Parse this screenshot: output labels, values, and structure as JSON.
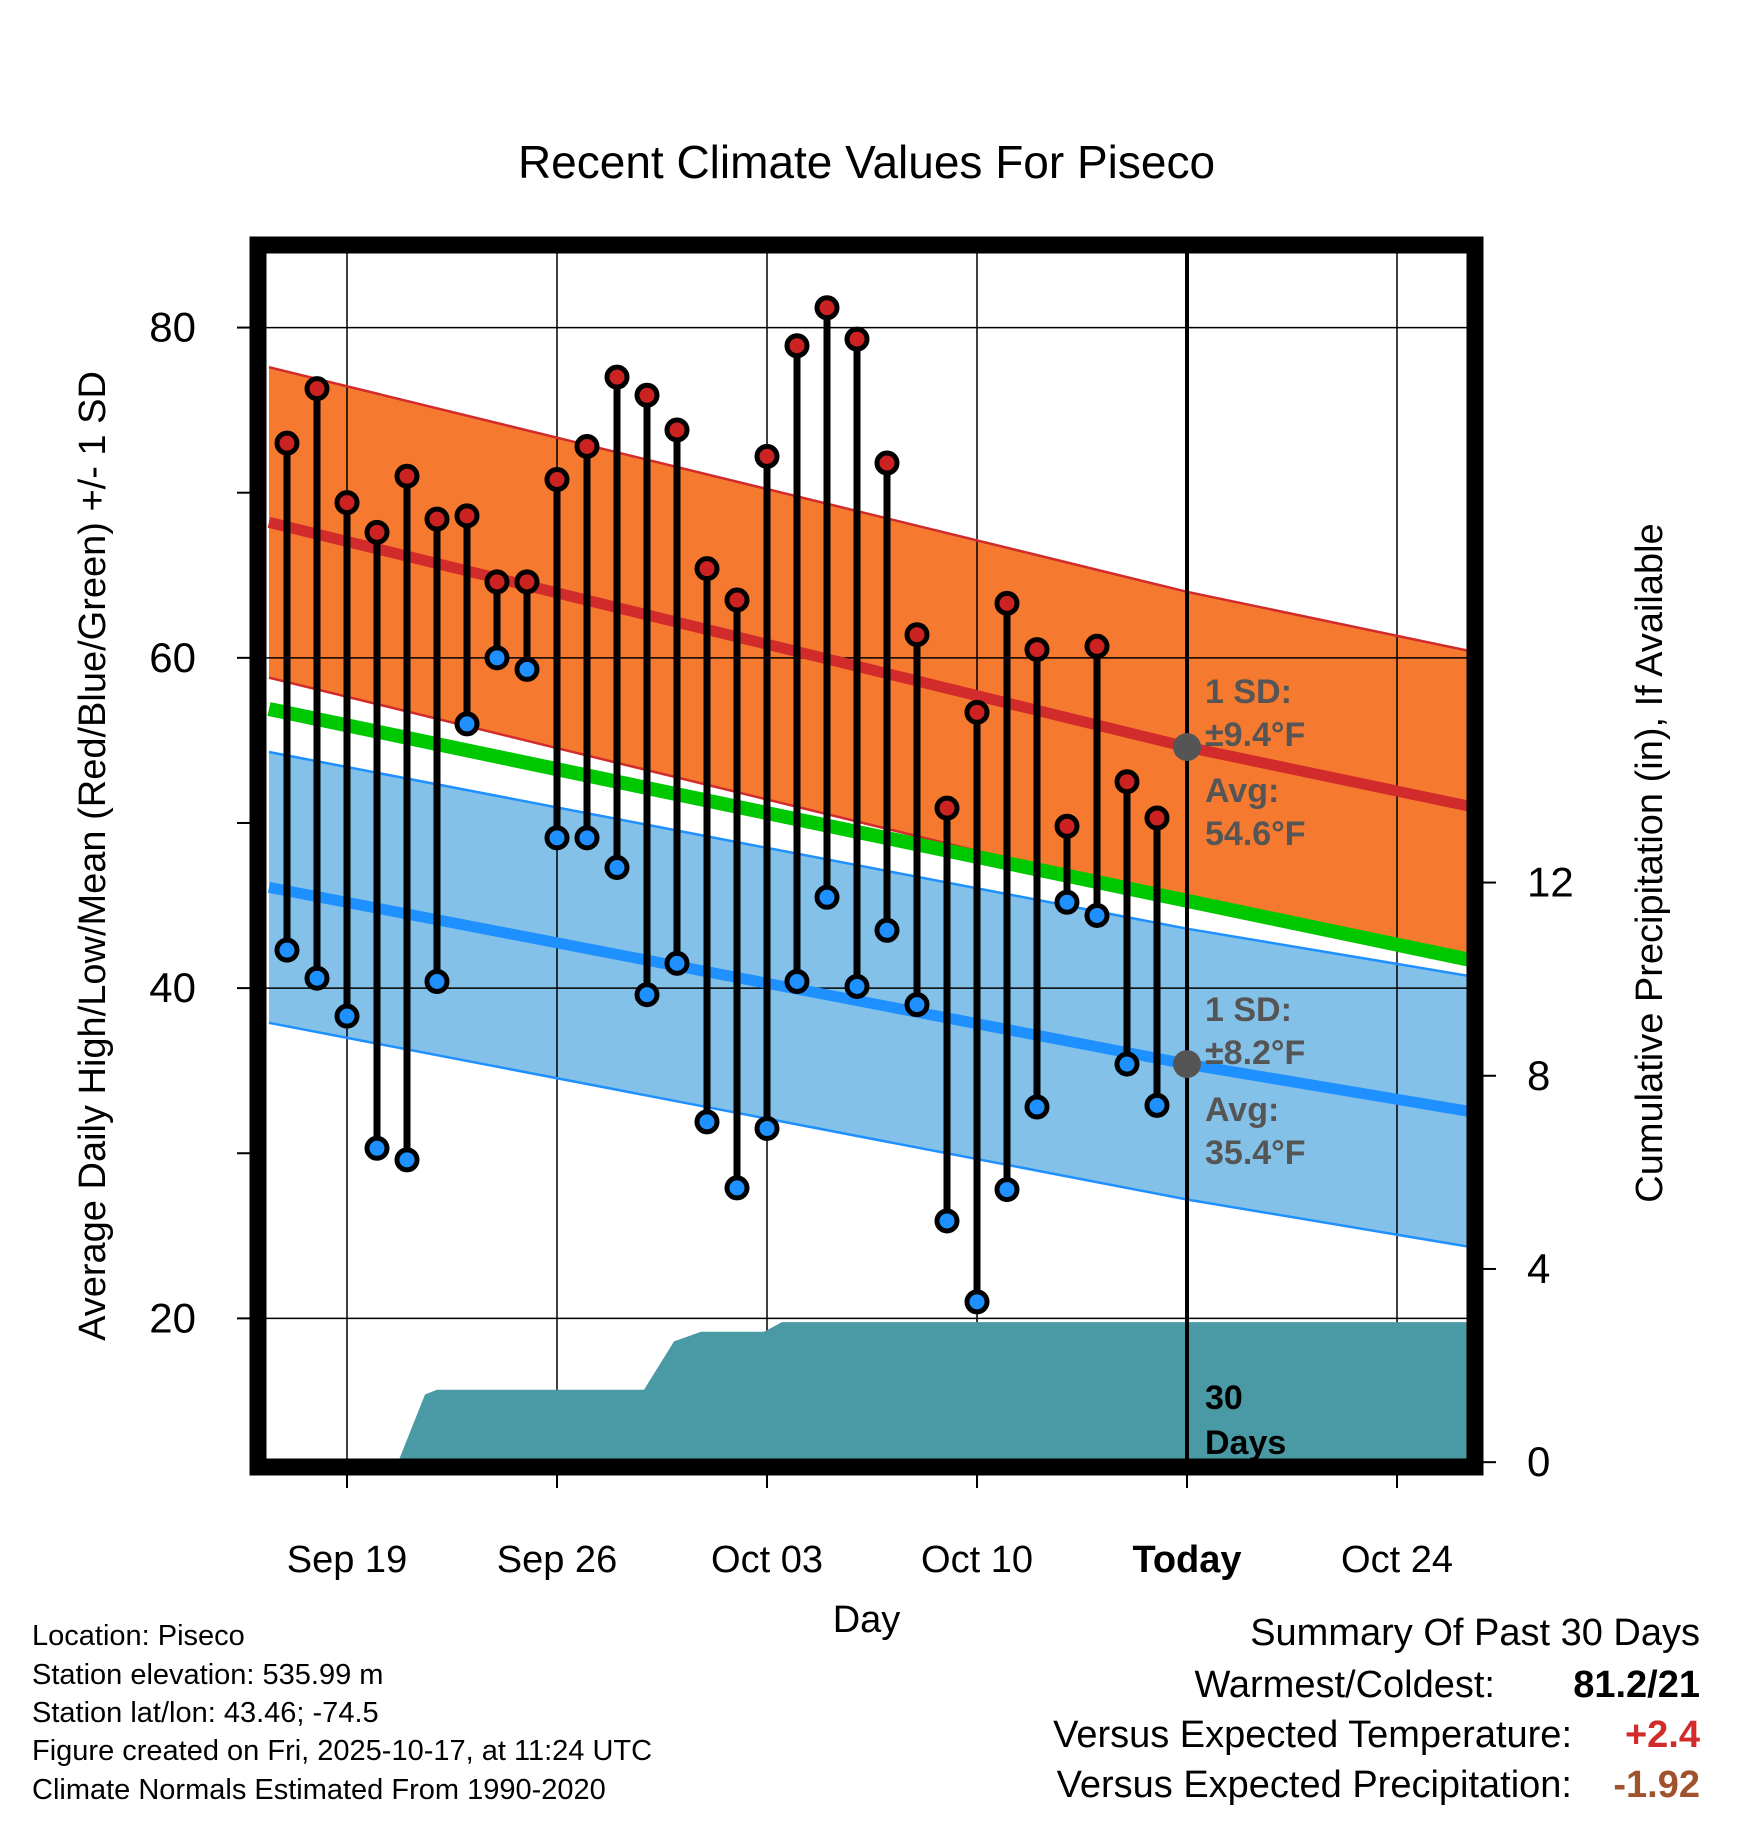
{
  "chart_data": {
    "type": "line",
    "title": "Recent Climate Values For Piseco",
    "xlabel": "Day",
    "ylabel": "Average Daily High/Low/Mean (Red/Blue/Green) +/- 1 SD",
    "y2label": "Cumulative Precipitation (in), If Available",
    "ylim": [
      11,
      85
    ],
    "y2lim": [
      -0.1,
      25.2
    ],
    "xlim": [
      -3.8,
      38.5
    ],
    "yticks": [
      "20",
      "40",
      "60",
      "80"
    ],
    "y2ticks": [
      "0",
      "4",
      "8",
      "12"
    ],
    "xticks": [
      {
        "day": 0,
        "label": "Sep 19"
      },
      {
        "day": 7,
        "label": "Sep 26"
      },
      {
        "day": 14,
        "label": "Oct 03"
      },
      {
        "day": 21,
        "label": "Oct 10"
      },
      {
        "day": 28,
        "label": "Today"
      },
      {
        "day": 35,
        "label": "Oct 24"
      }
    ],
    "today_day": 28,
    "normals": {
      "high_mean": [
        [
          -2.6,
          68.2
        ],
        [
          28,
          54.6
        ],
        [
          38.5,
          50.6
        ]
      ],
      "high_sd": 9.4,
      "low_mean": [
        [
          -2.6,
          46.1
        ],
        [
          28,
          35.4
        ],
        [
          38.5,
          32.2
        ]
      ],
      "low_sd": 8.2,
      "daily_mean": [
        [
          -2.6,
          56.9
        ],
        [
          38.5,
          41.3
        ]
      ]
    },
    "series": [
      {
        "name": "Daily High",
        "color": "#cc2222",
        "days": [
          -2,
          -1,
          0,
          1,
          2,
          3,
          4,
          5,
          6,
          7,
          8,
          9,
          10,
          11,
          12,
          13,
          14,
          15,
          16,
          17,
          18,
          19,
          20,
          21,
          22,
          23,
          24,
          25,
          26,
          27
        ],
        "values": [
          73.0,
          76.3,
          69.4,
          67.6,
          71.0,
          68.4,
          68.6,
          64.6,
          64.6,
          70.8,
          72.8,
          77.0,
          75.9,
          73.8,
          65.4,
          63.5,
          72.2,
          78.9,
          81.2,
          79.3,
          71.8,
          61.4,
          50.9,
          56.7,
          63.3,
          60.5,
          49.8,
          60.7,
          52.5,
          50.3
        ]
      },
      {
        "name": "Daily Low",
        "color": "#1e90ff",
        "days": [
          -2,
          -1,
          0,
          1,
          2,
          3,
          4,
          5,
          6,
          7,
          8,
          9,
          10,
          11,
          12,
          13,
          14,
          15,
          16,
          17,
          18,
          19,
          20,
          21,
          22,
          23,
          24,
          25,
          26,
          27
        ],
        "values": [
          42.3,
          40.6,
          38.3,
          30.3,
          29.6,
          40.4,
          56.0,
          60.0,
          59.3,
          49.1,
          49.1,
          47.3,
          39.6,
          41.5,
          31.9,
          27.9,
          31.5,
          40.4,
          45.5,
          40.1,
          43.5,
          39.0,
          25.9,
          21.0,
          27.8,
          32.8,
          45.2,
          44.4,
          35.4,
          32.9
        ]
      },
      {
        "name": "Cumulative Precipitation",
        "color": "#4a9aa5",
        "days": [
          1.7,
          2.6,
          3.0,
          9.9,
          10.9,
          11.8,
          12.2,
          13.9,
          14.5,
          16.6,
          17.5
        ],
        "values": [
          0,
          1.4,
          1.5,
          1.5,
          2.5,
          2.7,
          2.7,
          2.7,
          2.9,
          2.9,
          2.9
        ]
      }
    ],
    "annotations": {
      "high_sd_label": [
        "1 SD:",
        "±9.4°F"
      ],
      "high_avg_label": [
        "Avg:",
        "54.6°F"
      ],
      "low_sd_label": [
        "1 SD:",
        "±8.2°F"
      ],
      "low_avg_label": [
        "Avg:",
        "35.4°F"
      ],
      "days_label": [
        "30",
        "Days"
      ]
    },
    "colors": {
      "high_band": "#f57a2f",
      "high_mean_line": "#d12b2b",
      "low_band": "#84c1e8",
      "low_mean_line": "#1e90ff",
      "mean_line": "#00c800",
      "precip": "#4a9aa5",
      "annotation": "#555555"
    }
  },
  "info": {
    "location": "Location: Piseco",
    "elevation": "Station elevation: 535.99 m",
    "latlon": "Station lat/lon: 43.46; -74.5",
    "created": "Figure created on Fri, 2025-10-17, at 11:24 UTC",
    "normals": "Climate Normals Estimated From 1990-2020"
  },
  "summary": {
    "title": "Summary Of Past 30 Days",
    "warmest_label": "Warmest/Coldest:",
    "warmest_value": "81.2/21",
    "temp_label": "Versus Expected Temperature:",
    "temp_value": "+2.4",
    "temp_color": "#d12b2b",
    "precip_label": "Versus Expected Precipitation:",
    "precip_value": "-1.92",
    "precip_color": "#a0522d"
  }
}
